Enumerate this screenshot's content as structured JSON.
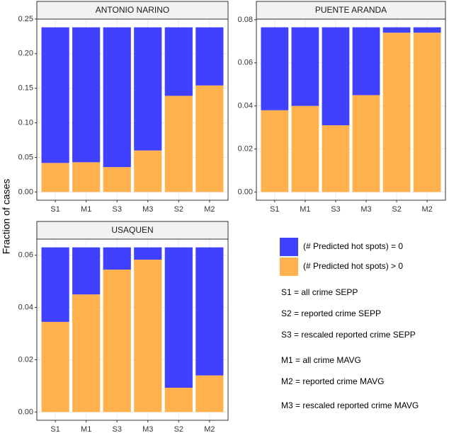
{
  "chart_data": [
    {
      "type": "bar",
      "stacked": true,
      "title": "ANTONIO NARINO",
      "categories": [
        "S1",
        "M1",
        "S3",
        "M3",
        "S2",
        "M2"
      ],
      "series": [
        {
          "name": "(# Predicted hot spots) > 0",
          "color": "#ffb14e",
          "values": [
            0.042,
            0.043,
            0.036,
            0.06,
            0.139,
            0.154
          ]
        },
        {
          "name": "(# Predicted hot spots) = 0",
          "color": "#4040ff",
          "values": [
            0.196,
            0.195,
            0.202,
            0.178,
            0.099,
            0.084
          ]
        }
      ],
      "ylim": [
        -0.0119,
        0.2499
      ],
      "yticks": [
        {
          "value": 0,
          "label": "0.00"
        },
        {
          "value": 0.05,
          "label": "0.05"
        },
        {
          "value": 0.1,
          "label": "0.10"
        },
        {
          "value": 0.15,
          "label": "0.15"
        },
        {
          "value": 0.2,
          "label": "0.20"
        },
        {
          "value": 0.25,
          "label": "0.25"
        }
      ],
      "grid": true
    },
    {
      "type": "bar",
      "stacked": true,
      "title": "PUENTE ARANDA",
      "categories": [
        "S1",
        "M1",
        "S3",
        "M3",
        "S2",
        "M2"
      ],
      "series": [
        {
          "name": "(# Predicted hot spots) > 0",
          "color": "#ffb14e",
          "values": [
            0.038,
            0.04,
            0.031,
            0.045,
            0.074,
            0.074
          ]
        },
        {
          "name": "(# Predicted hot spots) = 0",
          "color": "#4040ff",
          "values": [
            0.0385,
            0.0365,
            0.0455,
            0.0315,
            0.0025,
            0.0025
          ]
        }
      ],
      "ylim": [
        -0.0038,
        0.0803
      ],
      "yticks": [
        {
          "value": 0,
          "label": "0.00"
        },
        {
          "value": 0.02,
          "label": "0.02"
        },
        {
          "value": 0.04,
          "label": "0.04"
        },
        {
          "value": 0.06,
          "label": "0.06"
        },
        {
          "value": 0.08,
          "label": "0.08"
        }
      ],
      "grid": true
    },
    {
      "type": "bar",
      "stacked": true,
      "title": "USAQUEN",
      "categories": [
        "S1",
        "M1",
        "S3",
        "M3",
        "S2",
        "M2"
      ],
      "series": [
        {
          "name": "(# Predicted hot spots) > 0",
          "color": "#ffb14e",
          "values": [
            0.0345,
            0.045,
            0.0545,
            0.0583,
            0.0093,
            0.014
          ]
        },
        {
          "name": "(# Predicted hot spots) = 0",
          "color": "#4040ff",
          "values": [
            0.0285,
            0.018,
            0.0085,
            0.0047,
            0.0537,
            0.049
          ]
        }
      ],
      "ylim": [
        -0.00315,
        0.06615
      ],
      "yticks": [
        {
          "value": 0,
          "label": "0.00"
        },
        {
          "value": 0.02,
          "label": "0.02"
        },
        {
          "value": 0.04,
          "label": "0.04"
        },
        {
          "value": 0.06,
          "label": "0.06"
        }
      ],
      "grid": true
    }
  ],
  "y_label": "Fraction of cases",
  "annotations": [
    "S1 = all crime SEPP",
    "S2 = reported crime SEPP",
    "S3 = rescaled reported crime SEPP",
    "M1 = all crime MAVG",
    "M2 = reported crime MAVG",
    "M3 = rescaled reported crime MAVG"
  ]
}
